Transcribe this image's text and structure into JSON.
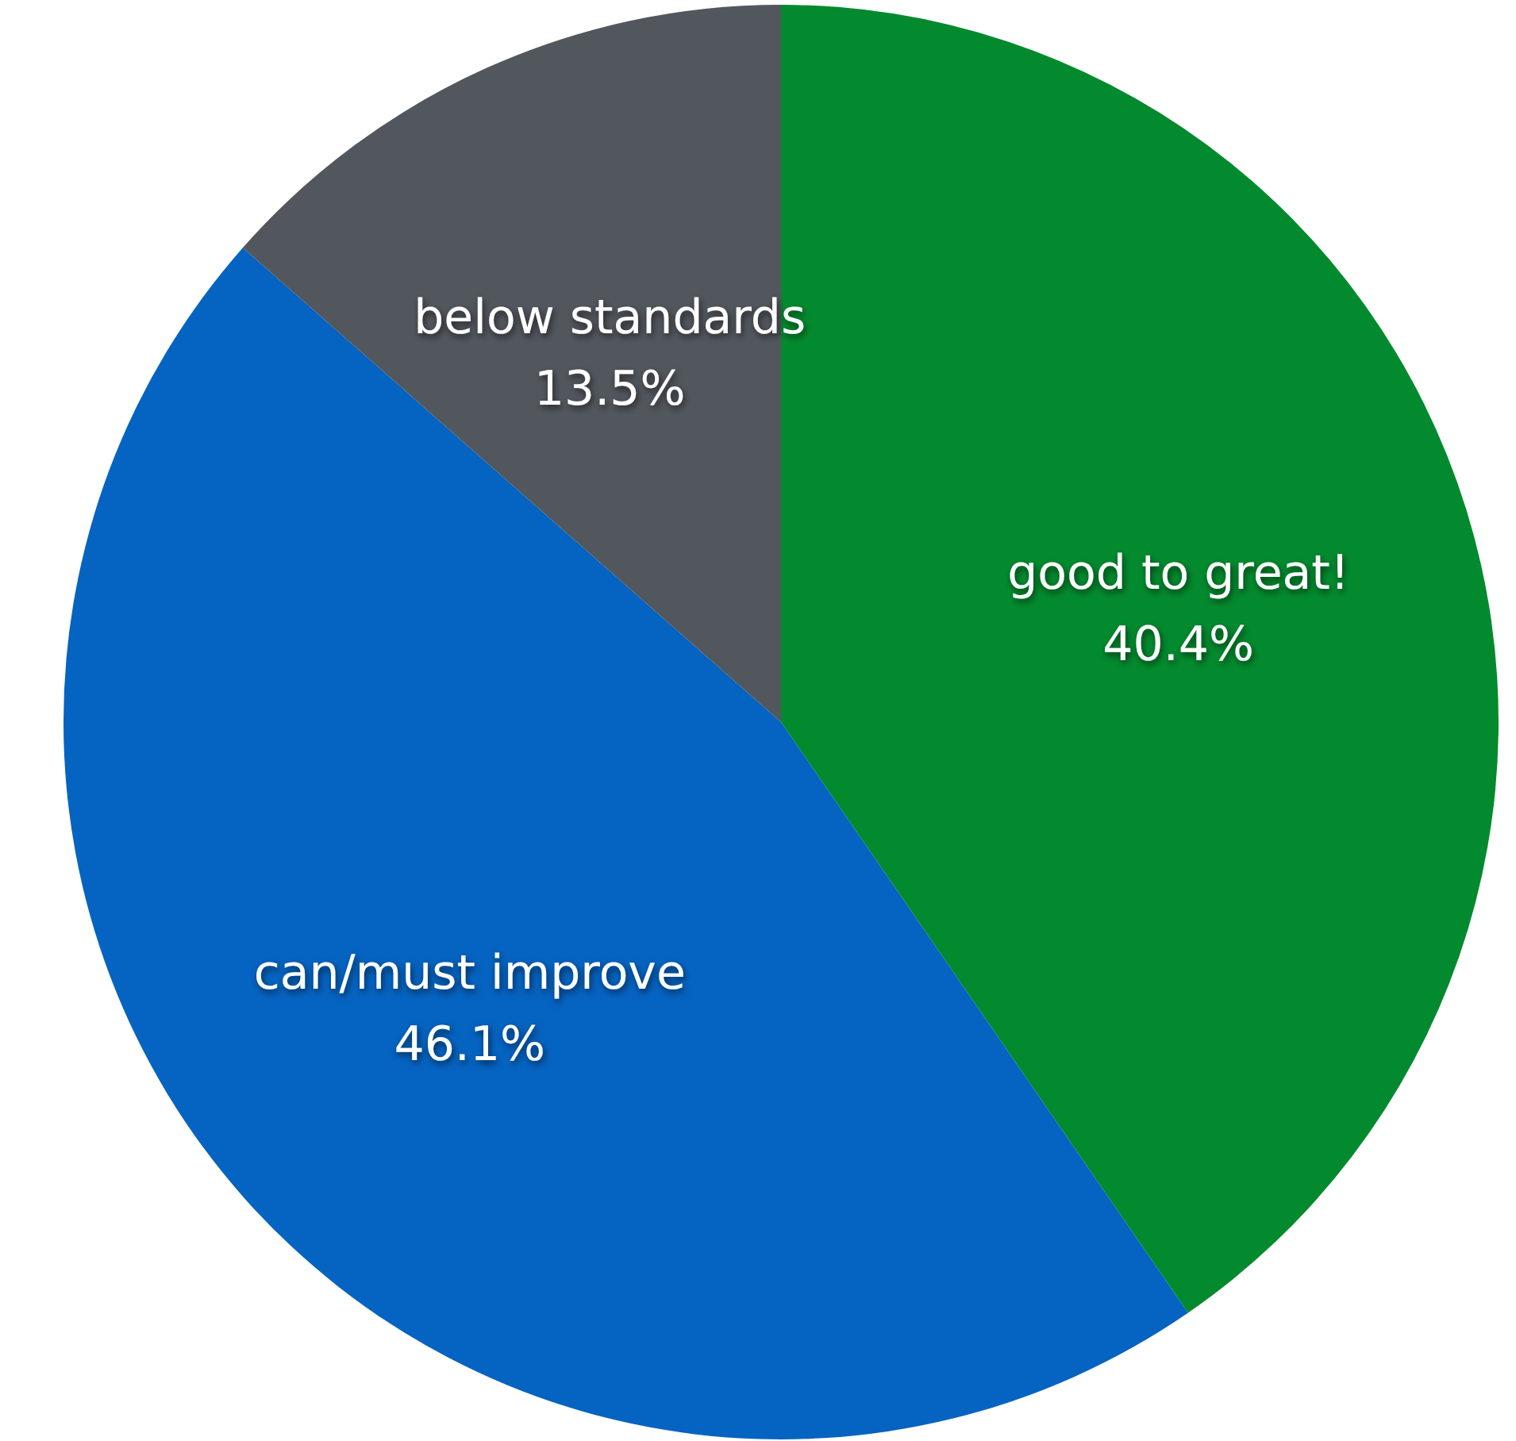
{
  "chart_data": {
    "type": "pie",
    "categories": [
      "good to great!",
      "can/must improve",
      "below standards"
    ],
    "values": [
      40.4,
      46.1,
      13.5
    ],
    "colors": [
      "#038a2e",
      "#0563c1",
      "#52575e"
    ],
    "value_labels": [
      "40.4%",
      "46.1%",
      "13.5%"
    ]
  }
}
